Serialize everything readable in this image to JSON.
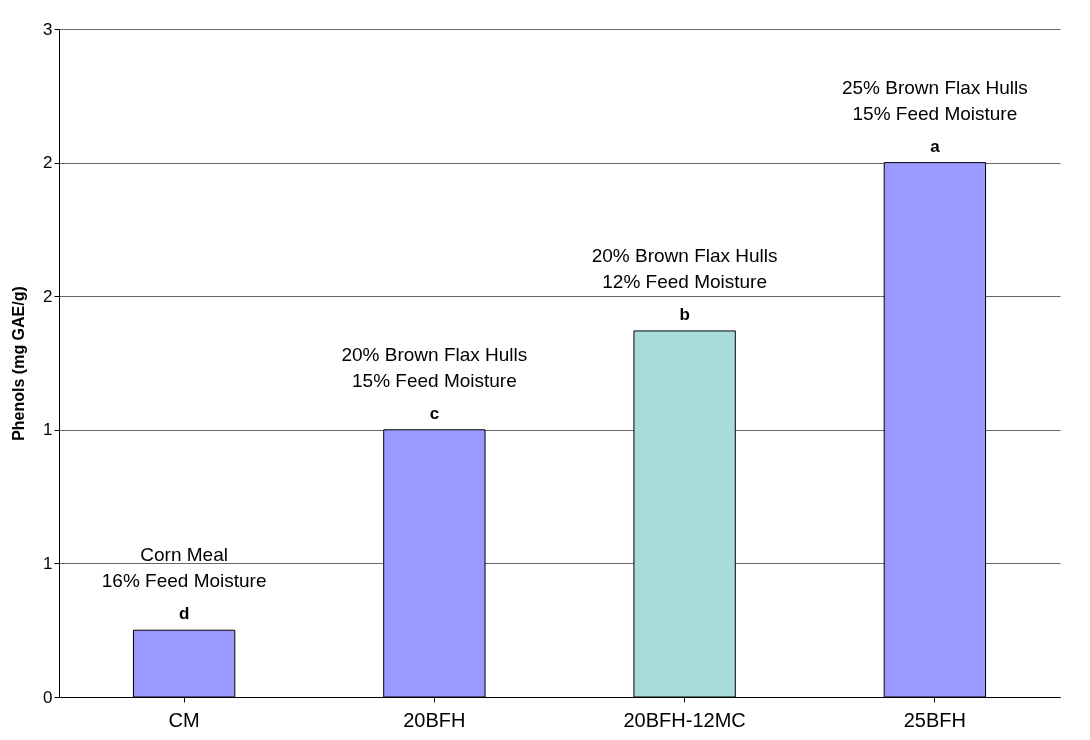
{
  "chart_data": {
    "type": "bar",
    "ylabel": "Phenols (mg GAE/g)",
    "categories": [
      "CM",
      "20BFH",
      "20BFH-12MC",
      "25BFH"
    ],
    "values": [
      0.25,
      1.0,
      1.37,
      2.0
    ],
    "colors": [
      "#9999ff",
      "#9999ff",
      "#a8dcdc",
      "#9999ff"
    ],
    "ylim": [
      0,
      2.5
    ],
    "yticks": [
      0,
      {
        "value": 0.5,
        "label": "1"
      },
      1,
      {
        "value": 1.5,
        "label": "2"
      },
      2,
      {
        "value": 2.5,
        "label": "3"
      }
    ],
    "grid": "y",
    "annotations": [
      {
        "text": "d",
        "x": "CM",
        "y": 0.25
      },
      {
        "text": "Corn Meal\n16% Feed Moisture",
        "x": "CM",
        "y": 0.25
      },
      {
        "text": "c",
        "x": "20BFH",
        "y": 1.0
      },
      {
        "text": "20% Brown Flax Hulls\n15% Feed Moisture",
        "x": "20BFH",
        "y": 1.0
      },
      {
        "text": "b",
        "x": "20BFH-12MC",
        "y": 1.37
      },
      {
        "text": "20% Brown Flax Hulls\n12% Feed Moisture",
        "x": "20BFH-12MC",
        "y": 1.37
      },
      {
        "text": "a",
        "x": "25BFH",
        "y": 2.0
      },
      {
        "text": "25% Brown Flax Hulls\n15% Feed Moisture",
        "x": "25BFH",
        "y": 2.0
      }
    ]
  }
}
